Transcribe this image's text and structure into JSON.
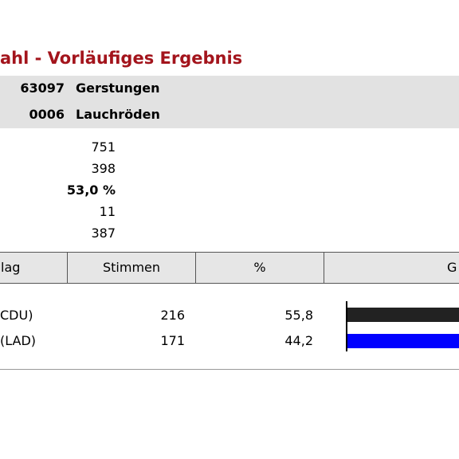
{
  "header": {
    "title": "ahl - Vorläufiges Ergebnis"
  },
  "location": [
    {
      "code": "63097",
      "name": "Gerstungen"
    },
    {
      "code": "0006",
      "name": "Lauchröden"
    }
  ],
  "stats": [
    "751",
    "398",
    "53,0 %",
    "11",
    "387"
  ],
  "table": {
    "headers": [
      "lag",
      "Stimmen",
      "%",
      "G"
    ],
    "rows": [
      [
        "CDU)",
        "216",
        "55,8"
      ],
      [
        "(LAD)",
        "171",
        "44,2"
      ]
    ],
    "bar_colors": [
      "#222222",
      "#0000ff"
    ]
  }
}
